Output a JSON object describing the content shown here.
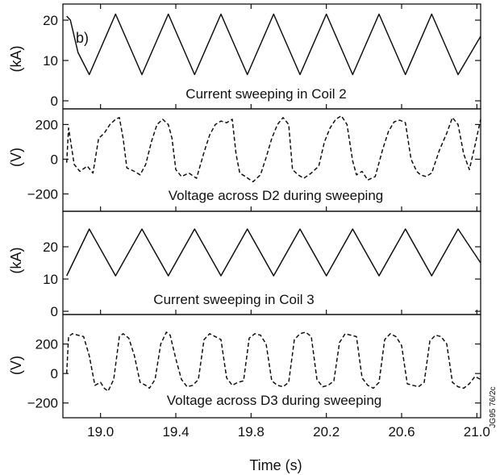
{
  "panel_label": "b)",
  "side_code": "JG95 76/2c",
  "x_axis": {
    "label": "Time (s)",
    "range": [
      18.8,
      21.02
    ],
    "ticks": [
      "19.0",
      "19.4",
      "19.8",
      "20.2",
      "20.6",
      "21.0"
    ]
  },
  "chart_data": [
    {
      "type": "line",
      "caption": "Current sweeping in Coil 2",
      "ylabel": "(kA)",
      "ylim": [
        -2,
        24
      ],
      "yticks": [
        "20",
        "10",
        "0"
      ],
      "line_style": "solid",
      "series": [
        {
          "x": [
            18.82,
            18.84,
            18.88,
            18.94,
            19.08,
            19.22,
            19.36,
            19.5,
            19.64,
            19.78,
            19.92,
            20.06,
            20.2,
            20.34,
            20.48,
            20.62,
            20.76,
            20.9,
            21.02
          ],
          "y": [
            21,
            20,
            12,
            6.5,
            21.5,
            6.5,
            21.5,
            6.5,
            21.5,
            6.5,
            21.5,
            6.5,
            21.5,
            6.5,
            21.5,
            6.5,
            21.5,
            6.5,
            16
          ]
        }
      ]
    },
    {
      "type": "line",
      "caption": "Voltage across D2 during sweeping",
      "ylabel": "(V)",
      "ylim": [
        -300,
        290
      ],
      "yticks": [
        "200",
        "0",
        "−200"
      ],
      "line_style": "dashed",
      "series": [
        {
          "x": [
            18.82,
            18.83,
            18.86,
            18.89,
            18.93,
            18.96,
            18.99,
            19.02,
            19.05,
            19.08,
            19.1,
            19.12,
            19.14,
            19.18,
            19.21,
            19.24,
            19.27,
            19.3,
            19.33,
            19.36,
            19.38,
            19.4,
            19.43,
            19.47,
            19.51,
            19.55,
            19.58,
            19.61,
            19.64,
            19.67,
            19.7,
            19.72,
            19.74,
            19.77,
            19.81,
            19.85,
            19.88,
            19.91,
            19.94,
            19.97,
            20.0,
            20.02,
            20.05,
            20.08,
            20.12,
            20.16,
            20.19,
            20.22,
            20.25,
            20.28,
            20.31,
            20.34,
            20.36,
            20.39,
            20.42,
            20.46,
            20.5,
            20.53,
            20.56,
            20.59,
            20.62,
            20.65,
            20.68,
            20.7,
            20.73,
            20.76,
            20.8,
            20.84,
            20.87,
            20.9,
            20.93,
            20.96,
            20.99,
            21.02
          ],
          "y": [
            -20,
            180,
            -30,
            -70,
            -40,
            -80,
            120,
            150,
            200,
            230,
            240,
            120,
            -50,
            -70,
            -90,
            -30,
            100,
            200,
            230,
            200,
            120,
            -60,
            -100,
            -80,
            -110,
            40,
            140,
            200,
            220,
            210,
            230,
            30,
            -80,
            -100,
            -130,
            -90,
            10,
            120,
            200,
            240,
            200,
            -60,
            -90,
            -110,
            -80,
            -40,
            100,
            180,
            230,
            250,
            200,
            -10,
            -90,
            -70,
            -120,
            -100,
            60,
            160,
            215,
            225,
            210,
            0,
            -70,
            -90,
            -100,
            -80,
            50,
            150,
            240,
            200,
            30,
            -60,
            80,
            230
          ]
        }
      ]
    },
    {
      "type": "line",
      "caption": "Current sweeping in Coil 3",
      "ylabel": "(kA)",
      "ylim": [
        -1,
        31
      ],
      "yticks": [
        "20",
        "10",
        "0"
      ],
      "line_style": "solid",
      "series": [
        {
          "x": [
            18.82,
            18.94,
            19.08,
            19.22,
            19.36,
            19.5,
            19.64,
            19.78,
            19.92,
            20.06,
            20.2,
            20.34,
            20.48,
            20.62,
            20.76,
            20.9,
            21.02
          ],
          "y": [
            11,
            25.5,
            11,
            25.5,
            11,
            25.5,
            11,
            25.5,
            11,
            25.5,
            11,
            25.5,
            11,
            25.5,
            11,
            25.5,
            15
          ]
        }
      ]
    },
    {
      "type": "line",
      "caption": "Voltage across D3 during sweeping",
      "ylabel": "(V)",
      "ylim": [
        -300,
        400
      ],
      "yticks": [
        "200",
        "0",
        "−200"
      ],
      "line_style": "dashed",
      "series": [
        {
          "x": [
            18.82,
            18.83,
            18.85,
            18.88,
            18.91,
            18.94,
            18.97,
            19.0,
            19.02,
            19.04,
            19.07,
            19.1,
            19.12,
            19.15,
            19.18,
            19.21,
            19.24,
            19.26,
            19.29,
            19.32,
            19.35,
            19.37,
            19.4,
            19.43,
            19.46,
            19.49,
            19.52,
            19.55,
            19.58,
            19.61,
            19.64,
            19.67,
            19.7,
            19.73,
            19.76,
            19.79,
            19.82,
            19.85,
            19.88,
            19.91,
            19.94,
            19.97,
            20.0,
            20.03,
            20.06,
            20.09,
            20.12,
            20.15,
            20.18,
            20.21,
            20.24,
            20.27,
            20.3,
            20.33,
            20.36,
            20.39,
            20.42,
            20.45,
            20.48,
            20.51,
            20.54,
            20.57,
            20.6,
            20.63,
            20.66,
            20.69,
            20.72,
            20.75,
            20.78,
            20.81,
            20.84,
            20.87,
            20.9,
            20.93,
            20.96,
            20.99,
            21.02
          ],
          "y": [
            0,
            250,
            270,
            260,
            250,
            120,
            -80,
            -60,
            -100,
            -120,
            -40,
            250,
            270,
            240,
            120,
            -60,
            -80,
            -100,
            -40,
            200,
            280,
            260,
            100,
            -40,
            -90,
            -80,
            -40,
            230,
            270,
            250,
            230,
            -30,
            -80,
            -60,
            -50,
            240,
            270,
            260,
            200,
            -50,
            -80,
            -90,
            -60,
            230,
            270,
            280,
            250,
            -40,
            -90,
            -80,
            -50,
            210,
            270,
            260,
            250,
            -30,
            -80,
            -100,
            -60,
            230,
            270,
            250,
            190,
            -70,
            -80,
            -90,
            -60,
            220,
            260,
            250,
            200,
            -60,
            -90,
            -100,
            -70,
            -20,
            -40
          ]
        }
      ]
    }
  ]
}
